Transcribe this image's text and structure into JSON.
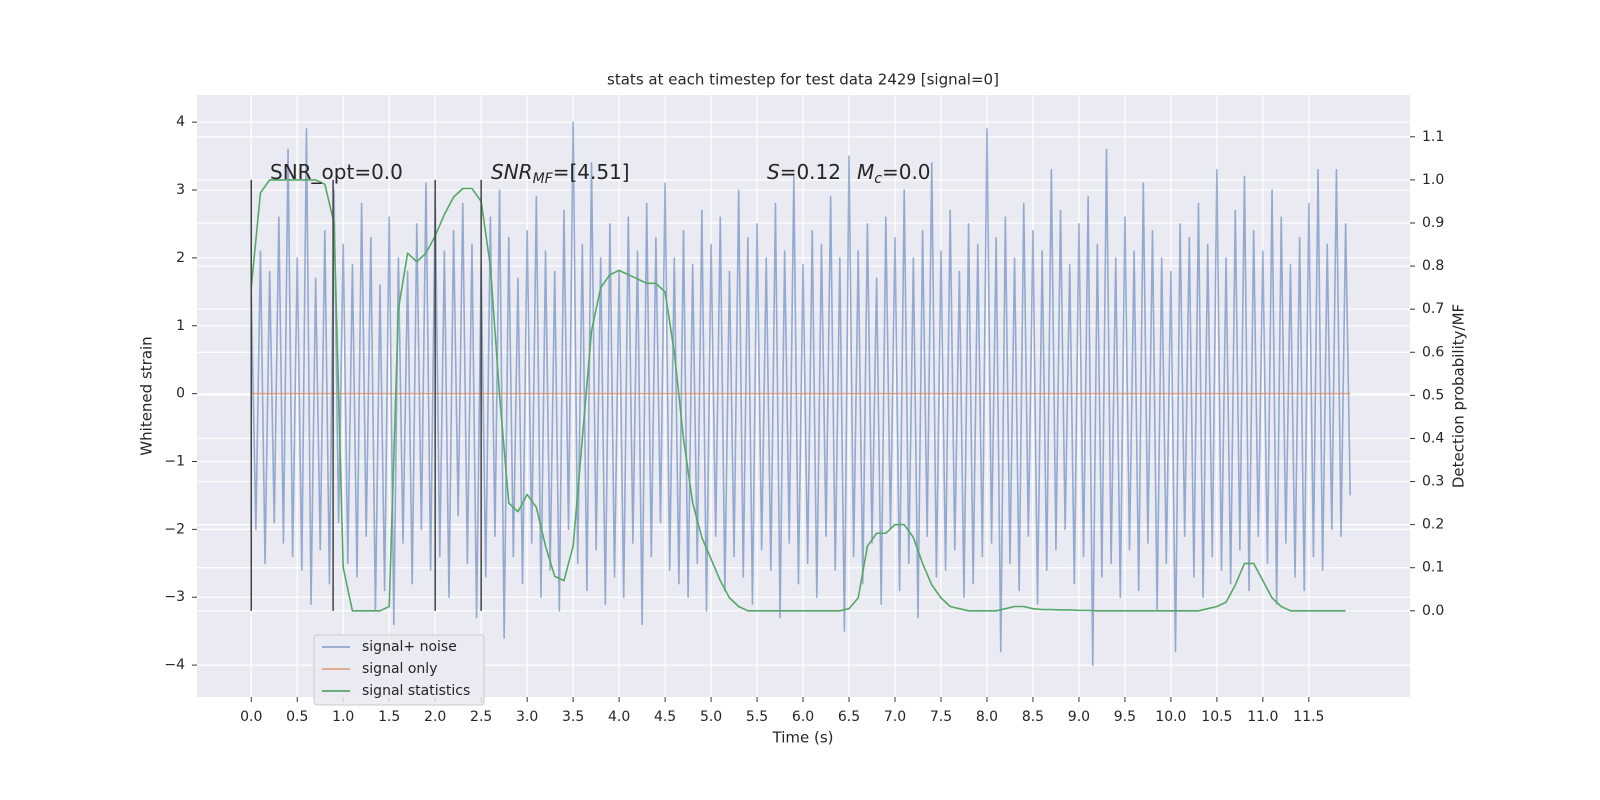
{
  "chart_data": {
    "type": "line",
    "title": "stats at each timestep for test data 2429 [signal=0]",
    "xlabel": "Time (s)",
    "ylabel": "Whitened strain",
    "y2label": "Detection probability/MF",
    "xlim": [
      -0.59,
      12.6
    ],
    "ylim": [
      -4.47,
      4.4
    ],
    "y2lim": [
      -0.2,
      1.197
    ],
    "xticks": [
      {
        "value": 0,
        "label": "0.0"
      },
      {
        "value": 0.5,
        "label": "0.5"
      },
      {
        "value": 1,
        "label": "1.0"
      },
      {
        "value": 1.5,
        "label": "1.5"
      },
      {
        "value": 2,
        "label": "2.0"
      },
      {
        "value": 2.5,
        "label": "2.5"
      },
      {
        "value": 3,
        "label": "3.0"
      },
      {
        "value": 3.5,
        "label": "3.5"
      },
      {
        "value": 4,
        "label": "4.0"
      },
      {
        "value": 4.5,
        "label": "4.5"
      },
      {
        "value": 5,
        "label": "5.0"
      },
      {
        "value": 5.5,
        "label": "5.5"
      },
      {
        "value": 6,
        "label": "6.0"
      },
      {
        "value": 6.5,
        "label": "6.5"
      },
      {
        "value": 7,
        "label": "7.0"
      },
      {
        "value": 7.5,
        "label": "7.5"
      },
      {
        "value": 8,
        "label": "8.0"
      },
      {
        "value": 8.5,
        "label": "8.5"
      },
      {
        "value": 9,
        "label": "9.0"
      },
      {
        "value": 9.5,
        "label": "9.5"
      },
      {
        "value": 10,
        "label": "10.0"
      },
      {
        "value": 10.5,
        "label": "10.5"
      },
      {
        "value": 11,
        "label": "11.0"
      },
      {
        "value": 11.5,
        "label": "11.5"
      }
    ],
    "yticks": [
      {
        "value": -4,
        "label": "−4"
      },
      {
        "value": -3,
        "label": "−3"
      },
      {
        "value": -2,
        "label": "−2"
      },
      {
        "value": -1,
        "label": "−1"
      },
      0,
      1,
      2,
      3,
      4
    ],
    "y2ticks": [
      {
        "value": 0,
        "label": "0.0"
      },
      {
        "value": 0.1,
        "label": "0.1"
      },
      {
        "value": 0.2,
        "label": "0.2"
      },
      {
        "value": 0.3,
        "label": "0.3"
      },
      {
        "value": 0.4,
        "label": "0.4"
      },
      {
        "value": 0.5,
        "label": "0.5"
      },
      {
        "value": 0.6,
        "label": "0.6"
      },
      {
        "value": 0.7,
        "label": "0.7"
      },
      {
        "value": 0.8,
        "label": "0.8"
      },
      {
        "value": 0.9,
        "label": "0.9"
      },
      {
        "value": 1,
        "label": "1.0"
      },
      {
        "value": 1.1,
        "label": "1.1"
      }
    ],
    "grid": true,
    "legend": "lower left",
    "series": [
      {
        "name": "signal+ noise",
        "color": "#4c72b0",
        "opacity": 0.55,
        "x": [
          0,
          0.05,
          0.1,
          0.15,
          0.2,
          0.25,
          0.3,
          0.35,
          0.4,
          0.45,
          0.5,
          0.55,
          0.6,
          0.65,
          0.7,
          0.75,
          0.8,
          0.85,
          0.9,
          0.95,
          1,
          1.05,
          1.1,
          1.15,
          1.2,
          1.25,
          1.3,
          1.35,
          1.4,
          1.45,
          1.5,
          1.55,
          1.6,
          1.65,
          1.7,
          1.75,
          1.8,
          1.85,
          1.9,
          1.95,
          2,
          2.05,
          2.1,
          2.15,
          2.2,
          2.25,
          2.3,
          2.35,
          2.4,
          2.45,
          2.5,
          2.55,
          2.6,
          2.65,
          2.7,
          2.75,
          2.8,
          2.85,
          2.9,
          2.95,
          3,
          3.05,
          3.1,
          3.15,
          3.2,
          3.25,
          3.3,
          3.35,
          3.4,
          3.45,
          3.5,
          3.55,
          3.6,
          3.65,
          3.7,
          3.75,
          3.8,
          3.85,
          3.9,
          3.95,
          4,
          4.05,
          4.1,
          4.15,
          4.2,
          4.25,
          4.3,
          4.35,
          4.4,
          4.45,
          4.5,
          4.55,
          4.6,
          4.65,
          4.7,
          4.75,
          4.8,
          4.85,
          4.9,
          4.95,
          5,
          5.05,
          5.1,
          5.15,
          5.2,
          5.25,
          5.3,
          5.35,
          5.4,
          5.45,
          5.5,
          5.55,
          5.6,
          5.65,
          5.7,
          5.75,
          5.8,
          5.85,
          5.9,
          5.95,
          6,
          6.05,
          6.1,
          6.15,
          6.2,
          6.25,
          6.3,
          6.35,
          6.4,
          6.45,
          6.5,
          6.55,
          6.6,
          6.65,
          6.7,
          6.75,
          6.8,
          6.85,
          6.9,
          6.95,
          7,
          7.05,
          7.1,
          7.15,
          7.2,
          7.25,
          7.3,
          7.35,
          7.4,
          7.45,
          7.5,
          7.55,
          7.6,
          7.65,
          7.7,
          7.75,
          7.8,
          7.85,
          7.9,
          7.95,
          8,
          8.05,
          8.1,
          8.15,
          8.2,
          8.25,
          8.3,
          8.35,
          8.4,
          8.45,
          8.5,
          8.55,
          8.6,
          8.65,
          8.7,
          8.75,
          8.8,
          8.85,
          8.9,
          8.95,
          9,
          9.05,
          9.1,
          9.15,
          9.2,
          9.25,
          9.3,
          9.35,
          9.4,
          9.45,
          9.5,
          9.55,
          9.6,
          9.65,
          9.7,
          9.75,
          9.8,
          9.85,
          9.9,
          9.95,
          10,
          10.05,
          10.1,
          10.15,
          10.2,
          10.25,
          10.3,
          10.35,
          10.4,
          10.45,
          10.5,
          10.55,
          10.6,
          10.65,
          10.7,
          10.75,
          10.8,
          10.85,
          10.9,
          10.95,
          11,
          11.05,
          11.1,
          11.15,
          11.2,
          11.25,
          11.3,
          11.35,
          11.4,
          11.45,
          11.5,
          11.55,
          11.6,
          11.65,
          11.7,
          11.75,
          11.8,
          11.85,
          11.9,
          11.95
        ],
        "values": [
          1.5,
          -2.0,
          2.1,
          -2.5,
          1.8,
          -1.9,
          2.6,
          -2.2,
          3.6,
          -2.4,
          2.0,
          -2.6,
          3.9,
          -3.1,
          1.7,
          -2.3,
          2.4,
          -2.8,
          3.0,
          -1.9,
          2.2,
          -2.5,
          1.9,
          -2.7,
          2.8,
          -2.1,
          2.3,
          -3.2,
          1.6,
          -2.9,
          2.6,
          -3.4,
          2.0,
          -2.2,
          1.8,
          -2.8,
          2.5,
          -2.0,
          3.1,
          -2.6,
          2.9,
          -2.4,
          2.1,
          -3.0,
          2.4,
          -1.8,
          2.8,
          -2.5,
          2.2,
          -3.3,
          1.9,
          -2.7,
          2.6,
          -2.1,
          3.0,
          -3.6,
          2.3,
          -2.4,
          1.7,
          -2.8,
          2.4,
          -2.2,
          2.9,
          -3.0,
          2.1,
          -2.6,
          1.8,
          -3.2,
          2.7,
          -2.0,
          4.0,
          -2.5,
          2.2,
          -2.9,
          3.4,
          -2.3,
          2.0,
          -3.1,
          2.5,
          -2.7,
          1.8,
          -3.0,
          2.6,
          -2.2,
          2.1,
          -3.4,
          2.8,
          -2.4,
          2.3,
          -1.9,
          3.1,
          -2.6,
          2.0,
          -2.8,
          2.4,
          -3.0,
          1.9,
          -2.5,
          2.7,
          -3.2,
          2.2,
          -2.1,
          2.6,
          -2.9,
          1.8,
          -2.4,
          3.0,
          -2.7,
          2.3,
          -3.1,
          2.5,
          -2.3,
          2.0,
          -2.6,
          2.8,
          -3.3,
          2.1,
          -2.2,
          3.2,
          -2.8,
          1.9,
          -2.5,
          2.4,
          -3.0,
          2.2,
          -2.1,
          2.9,
          -2.6,
          2.0,
          -3.5,
          3.5,
          -2.4,
          2.1,
          -2.8,
          2.5,
          -2.2,
          1.7,
          -3.1,
          2.6,
          -2.0,
          2.3,
          -2.9,
          3.0,
          -2.5,
          2.0,
          -3.3,
          2.4,
          -2.1,
          3.4,
          -2.7,
          2.1,
          -2.6,
          2.7,
          -2.3,
          1.8,
          -3.0,
          2.5,
          -2.8,
          2.2,
          -2.4,
          3.9,
          -2.2,
          2.3,
          -3.8,
          2.6,
          -2.5,
          2.0,
          -2.9,
          2.8,
          -2.1,
          2.4,
          -3.1,
          2.1,
          -2.6,
          3.3,
          -2.3,
          2.7,
          -2.0,
          1.9,
          -2.8,
          2.5,
          -2.4,
          2.9,
          -4.0,
          2.2,
          -2.7,
          3.6,
          -2.5,
          2.0,
          -3.0,
          2.6,
          -2.3,
          2.1,
          -2.9,
          3.1,
          -2.2,
          2.4,
          -3.2,
          2.0,
          -2.5,
          1.8,
          -3.8,
          2.5,
          -2.1,
          2.3,
          -2.7,
          2.8,
          -3.0,
          2.2,
          -2.4,
          3.3,
          -2.6,
          2.0,
          -2.8,
          2.7,
          -2.3,
          3.2,
          -2.9,
          2.4,
          -2.1,
          2.1,
          -2.5,
          3.0,
          -3.1,
          2.6,
          -2.2,
          1.9,
          -2.7,
          2.3,
          -2.9,
          2.8,
          -2.4,
          3.3,
          -2.6,
          2.2,
          -2.0,
          3.3,
          -2.1,
          2.5,
          -1.5
        ]
      },
      {
        "name": "signal only",
        "color": "#dd8452",
        "opacity": 0.7,
        "x": [
          0,
          11.95
        ],
        "values": [
          0,
          0
        ]
      },
      {
        "name": "signal statistics",
        "color": "#55a868",
        "opacity": 1,
        "axis": "y2",
        "x": [
          0,
          0.1,
          0.2,
          0.3,
          0.4,
          0.5,
          0.6,
          0.7,
          0.8,
          0.9,
          1,
          1.1,
          1.2,
          1.3,
          1.4,
          1.5,
          1.6,
          1.7,
          1.8,
          1.9,
          2,
          2.1,
          2.2,
          2.3,
          2.4,
          2.5,
          2.6,
          2.7,
          2.8,
          2.9,
          3,
          3.1,
          3.2,
          3.3,
          3.4,
          3.5,
          3.6,
          3.7,
          3.8,
          3.9,
          4,
          4.1,
          4.2,
          4.3,
          4.4,
          4.5,
          4.6,
          4.7,
          4.8,
          4.9,
          5,
          5.1,
          5.2,
          5.3,
          5.4,
          5.5,
          5.6,
          5.7,
          5.8,
          5.9,
          6,
          6.1,
          6.2,
          6.3,
          6.4,
          6.5,
          6.6,
          6.7,
          6.8,
          6.9,
          7,
          7.1,
          7.2,
          7.3,
          7.4,
          7.5,
          7.6,
          7.7,
          7.8,
          7.9,
          8,
          8.1,
          8.2,
          8.3,
          8.4,
          8.5,
          8.6,
          8.7,
          8.8,
          8.9,
          9,
          9.1,
          9.2,
          9.3,
          9.4,
          9.5,
          9.6,
          9.7,
          9.8,
          9.9,
          10,
          10.1,
          10.2,
          10.3,
          10.4,
          10.5,
          10.6,
          10.7,
          10.8,
          10.9,
          11,
          11.1,
          11.2,
          11.3,
          11.4,
          11.5,
          11.6,
          11.7,
          11.8,
          11.9
        ],
        "values": [
          0.75,
          0.97,
          1.0,
          1.0,
          1.0,
          1.0,
          1.0,
          1.0,
          0.99,
          0.9,
          0.1,
          0.0,
          0.0,
          0.0,
          0.0,
          0.01,
          0.7,
          0.83,
          0.81,
          0.83,
          0.87,
          0.92,
          0.96,
          0.98,
          0.98,
          0.95,
          0.8,
          0.5,
          0.25,
          0.23,
          0.27,
          0.24,
          0.15,
          0.08,
          0.07,
          0.15,
          0.4,
          0.65,
          0.75,
          0.78,
          0.79,
          0.78,
          0.77,
          0.76,
          0.76,
          0.74,
          0.6,
          0.4,
          0.25,
          0.17,
          0.12,
          0.07,
          0.03,
          0.01,
          0.0,
          0.0,
          0.0,
          0.0,
          0.0,
          0.0,
          0.0,
          0.0,
          0.0,
          0.0,
          0.0,
          0.005,
          0.03,
          0.15,
          0.18,
          0.18,
          0.2,
          0.2,
          0.17,
          0.11,
          0.06,
          0.03,
          0.01,
          0.005,
          0.0,
          0.0,
          0.0,
          0.0,
          0.005,
          0.01,
          0.01,
          0.005,
          0.003,
          0.003,
          0.002,
          0.002,
          0.001,
          0.001,
          0.0,
          0.0,
          0.0,
          0.0,
          0.0,
          0.0,
          0.0,
          0.0,
          0.0,
          0.0,
          0.0,
          0.0,
          0.005,
          0.01,
          0.02,
          0.06,
          0.11,
          0.11,
          0.07,
          0.03,
          0.01,
          0.0,
          0.0,
          0.0,
          0.0,
          0.0,
          0.0,
          0.0
        ]
      }
    ],
    "vlines": {
      "x": [
        0,
        0.89,
        2.0,
        2.5
      ],
      "ymin": 0,
      "ymax": 1,
      "axis": "y2",
      "color": "#444444"
    },
    "annotations": [
      {
        "parts": [
          {
            "text": "SNR_opt=0.0"
          }
        ]
      },
      {
        "parts": [
          {
            "text": "SNR",
            "italic": true
          },
          {
            "text": "MF",
            "italic": true,
            "sub": true
          },
          {
            "text": "=[4.51]"
          }
        ]
      },
      {
        "parts": [
          {
            "text": "S",
            "italic": true
          },
          {
            "text": "=0.12"
          },
          {
            "text": "M",
            "italic": true
          },
          {
            "text": "c",
            "italic": true,
            "sub": true
          },
          {
            "text": "=0.0"
          }
        ]
      }
    ]
  }
}
